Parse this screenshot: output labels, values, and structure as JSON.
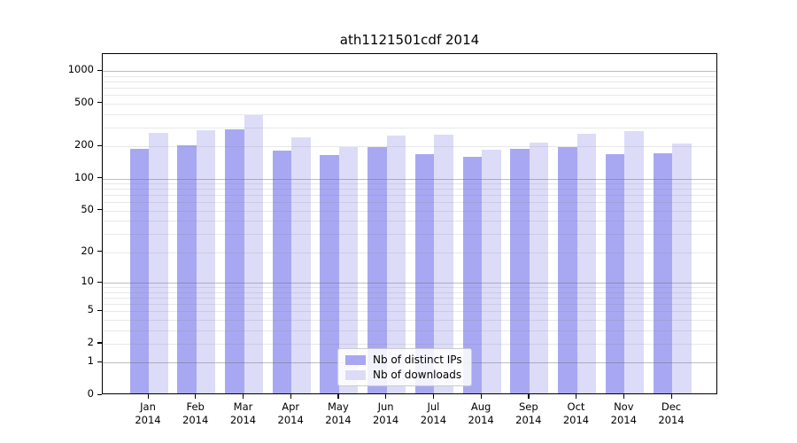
{
  "figure": {
    "background": "#ffffff"
  },
  "chart_data": {
    "type": "bar",
    "title": "ath1121501cdf 2014",
    "categories": [
      "Jan 2014",
      "Feb 2014",
      "Mar 2014",
      "Apr 2014",
      "May 2014",
      "Jun 2014",
      "Jul 2014",
      "Aug 2014",
      "Sep 2014",
      "Oct 2014",
      "Nov 2014",
      "Dec 2014"
    ],
    "series": [
      {
        "name": "Nb of distinct IPs",
        "color": "#a8a8f2",
        "values": [
          183,
          195,
          279,
          175,
          160,
          188,
          163,
          155,
          182,
          189,
          164,
          166
        ]
      },
      {
        "name": "Nb of downloads",
        "color": "#dcdcf8",
        "values": [
          257,
          272,
          375,
          235,
          190,
          242,
          248,
          178,
          210,
          252,
          267,
          205
        ]
      }
    ],
    "xlabel": "",
    "ylabel": "",
    "yscale": "log1p",
    "ylim": [
      0,
      1434
    ],
    "yticks": [
      0,
      1,
      2,
      5,
      10,
      20,
      50,
      100,
      200,
      500,
      1000
    ],
    "grid": {
      "orientation": "horizontal",
      "major_ticks": [
        1,
        10,
        100,
        1000
      ],
      "minor_ticks_rule": "2-9 within each decade",
      "major_color": "#a0a0a5",
      "minor_color": "#e3e3e6"
    },
    "legend": {
      "position": "lower center",
      "border_color": "#cccccc",
      "background": "#ffffff"
    }
  }
}
